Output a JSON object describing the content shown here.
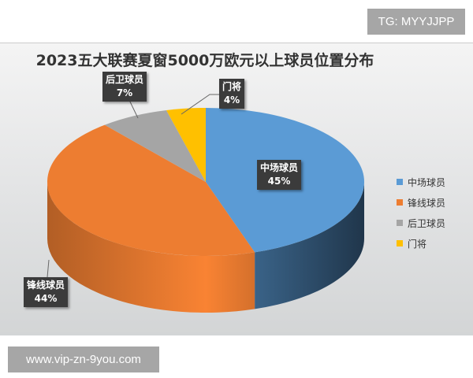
{
  "watermark_top": "TG: MYYJJPP",
  "watermark_bottom": "www.vip-zn-9you.com",
  "chart_data": {
    "type": "pie",
    "title": "2023五大联赛夏窗5000万欧元以上球员位置分布",
    "style": "3d",
    "legend_position": "right",
    "slices": [
      {
        "name": "中场球员",
        "value": 45,
        "label": "45%",
        "color": "#5b9bd5"
      },
      {
        "name": "锋线球员",
        "value": 44,
        "label": "44%",
        "color": "#ed7d31"
      },
      {
        "name": "后卫球员",
        "value": 7,
        "label": "7%",
        "color": "#a5a5a5"
      },
      {
        "name": "门将",
        "value": 4,
        "label": "4%",
        "color": "#ffc000"
      }
    ]
  }
}
